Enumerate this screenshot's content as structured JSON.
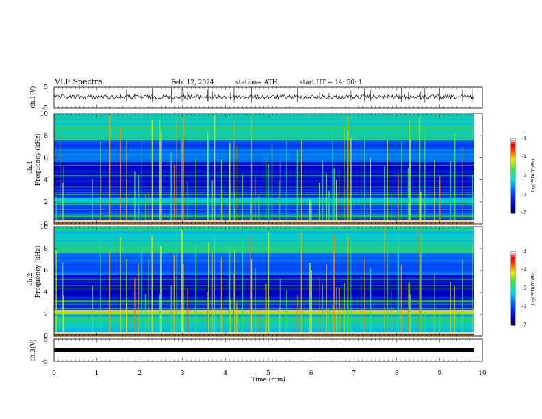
{
  "header": {
    "title": "VLF  Spectra",
    "date": "Feb. 12, 2024",
    "station": "station= ATH",
    "start": "start  UT  =    14: 50: 1"
  },
  "chart_data": [
    {
      "type": "line",
      "panel": "ch1-waveform",
      "ylabel": "ch.1(V)",
      "ylim": [
        -5,
        5
      ],
      "yticks": [
        "5",
        "-5"
      ],
      "x_range_min": [
        0,
        10
      ]
    },
    {
      "type": "heatmap",
      "panel": "ch1-spectrogram",
      "ylabel_top": "ch.1",
      "ylabel": "Frequency  (kHz)",
      "ylim": [
        0,
        10
      ],
      "yticks": [
        "0",
        "2",
        "4",
        "6",
        "8",
        "10"
      ],
      "colorbar": {
        "label": "log(PSD)(V²/Hz)",
        "range": [
          -7,
          -3
        ],
        "ticks": [
          "-3",
          "-4",
          "-5",
          "-6",
          "-7"
        ]
      }
    },
    {
      "type": "heatmap",
      "panel": "ch2-spectrogram",
      "ylabel_top": "ch.2",
      "ylabel": "Frequency  (kHz)",
      "ylim": [
        0,
        10
      ],
      "yticks": [
        "0",
        "2",
        "4",
        "6",
        "8",
        "10"
      ],
      "colorbar": {
        "label": "log(PSD)(V²/Hz)",
        "range": [
          -7,
          -3
        ],
        "ticks": [
          "-3",
          "-4",
          "-5",
          "-6",
          "-7"
        ]
      }
    },
    {
      "type": "line",
      "panel": "ch3-waveform",
      "ylabel": "ch.3(V)",
      "ylim": [
        -5,
        5
      ],
      "yticks": [
        "5",
        "-5"
      ],
      "xlabel": "Time  (min)",
      "xlim": [
        0,
        10
      ],
      "xticks": [
        "0",
        "1",
        "2",
        "3",
        "4",
        "5",
        "6",
        "7",
        "8",
        "9",
        "10"
      ],
      "data_end_min": 9.8
    }
  ]
}
